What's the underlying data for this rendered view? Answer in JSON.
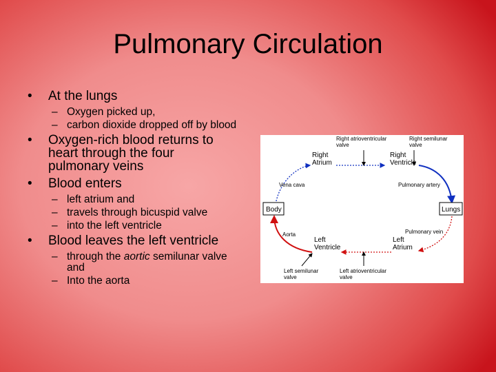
{
  "title": "Pulmonary Circulation",
  "bullets": [
    {
      "text": "At the lungs",
      "sub": [
        [
          "Oxygen picked up,"
        ],
        [
          "carbon dioxide dropped off by blood"
        ]
      ]
    },
    {
      "text": "Oxygen-rich blood returns to heart through the four pulmonary veins"
    },
    {
      "text": "Blood enters",
      "sub": [
        [
          "left atrium and"
        ],
        [
          "travels through bicuspid valve"
        ],
        [
          "into the left ventricle"
        ]
      ]
    },
    {
      "text": "Blood leaves the left ventricle",
      "sub": [
        [
          "through the",
          "aortic",
          "semilunar valve and"
        ],
        [
          "Into the aorta"
        ]
      ]
    }
  ],
  "diagram": {
    "right_av_valve": "Right atrioventricular valve",
    "right_sl_valve": "Right semilunar valve",
    "right_atrium": "Right Atrium",
    "right_ventricle": "Right Ventricle",
    "vena_cava": "Vena cava",
    "pulmonary_artery": "Pulmonary artery",
    "body": "Body",
    "lungs": "Lungs",
    "aorta": "Aorta",
    "pulmonary_vein": "Pulmonary vein",
    "left_ventricle": "Left Ventricle",
    "left_atrium": "Left Atrium",
    "left_sl_valve": "Left semilunar valve",
    "left_av_valve": "Left atrioventricular valve"
  }
}
